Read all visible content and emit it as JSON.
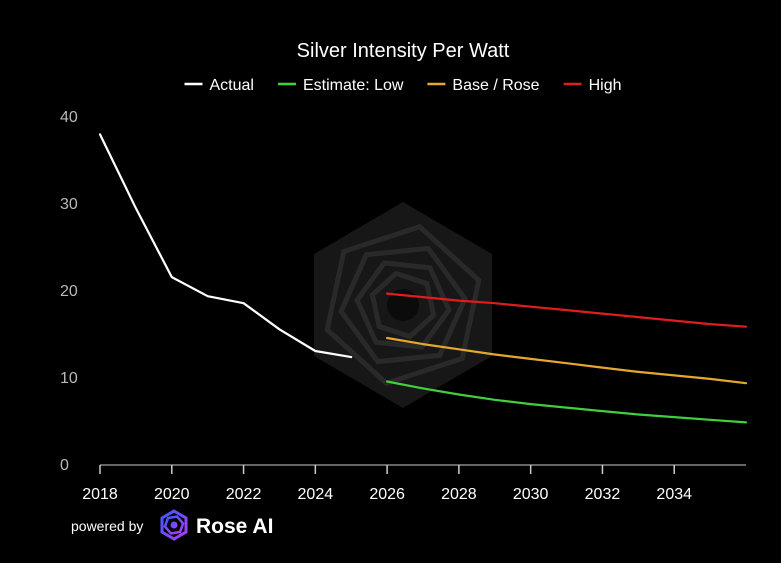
{
  "chart_data": {
    "type": "line",
    "title": "Silver Intensity Per Watt",
    "xlabel": "",
    "ylabel": "",
    "xlim": [
      2018,
      2036
    ],
    "ylim": [
      0,
      40
    ],
    "x_ticks": [
      "2018",
      "2020",
      "2022",
      "2024",
      "2026",
      "2028",
      "2030",
      "2032",
      "2034"
    ],
    "y_ticks": [
      "0",
      "10",
      "20",
      "30",
      "40"
    ],
    "grid": false,
    "legend_position": "top",
    "series": [
      {
        "name": "Actual",
        "color": "#ffffff",
        "x": [
          2018,
          2019,
          2020,
          2021,
          2022,
          2023,
          2024,
          2025
        ],
        "y": [
          38.0,
          29.5,
          21.6,
          19.4,
          18.6,
          15.6,
          13.1,
          12.4
        ]
      },
      {
        "name": "Estimate: Low",
        "color": "#3fcf3f",
        "x": [
          2026,
          2027,
          2028,
          2029,
          2030,
          2031,
          2032,
          2033,
          2034,
          2035,
          2036
        ],
        "y": [
          9.6,
          8.8,
          8.1,
          7.5,
          7.0,
          6.6,
          6.2,
          5.8,
          5.5,
          5.2,
          4.9
        ]
      },
      {
        "name": "Base / Rose",
        "color": "#e5a82e",
        "x": [
          2026,
          2027,
          2028,
          2029,
          2030,
          2031,
          2032,
          2033,
          2034,
          2035,
          2036
        ],
        "y": [
          14.6,
          13.9,
          13.3,
          12.7,
          12.2,
          11.7,
          11.2,
          10.7,
          10.3,
          9.9,
          9.4
        ]
      },
      {
        "name": "High",
        "color": "#e01c1c",
        "x": [
          2026,
          2027,
          2028,
          2029,
          2030,
          2031,
          2032,
          2033,
          2034,
          2035,
          2036
        ],
        "y": [
          19.7,
          19.3,
          18.9,
          18.6,
          18.2,
          17.8,
          17.4,
          17.0,
          16.6,
          16.2,
          15.9
        ]
      }
    ]
  },
  "footer": {
    "powered_by": "powered by",
    "brand": "Rose AI"
  },
  "icons": {
    "watermark": "rose-ai-logo-watermark",
    "brand": "rose-ai-logo-icon"
  },
  "colors": {
    "background": "#000000",
    "axis": "#cccccc",
    "brand_gradient": [
      "#3b5bff",
      "#9b3bff"
    ]
  }
}
